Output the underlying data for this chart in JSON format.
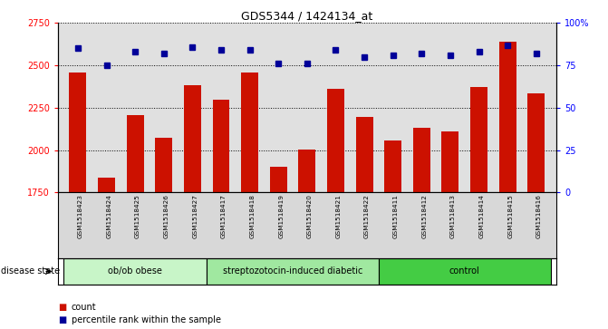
{
  "title": "GDS5344 / 1424134_at",
  "samples": [
    "GSM1518423",
    "GSM1518424",
    "GSM1518425",
    "GSM1518426",
    "GSM1518427",
    "GSM1518417",
    "GSM1518418",
    "GSM1518419",
    "GSM1518420",
    "GSM1518421",
    "GSM1518422",
    "GSM1518411",
    "GSM1518412",
    "GSM1518413",
    "GSM1518414",
    "GSM1518415",
    "GSM1518416"
  ],
  "counts": [
    2460,
    1840,
    2205,
    2075,
    2385,
    2300,
    2460,
    1900,
    2005,
    2360,
    2195,
    2055,
    2130,
    2110,
    2370,
    2640,
    2335
  ],
  "percentiles": [
    85,
    75,
    83,
    82,
    86,
    84,
    84,
    76,
    76,
    84,
    80,
    81,
    82,
    81,
    83,
    87,
    82
  ],
  "groups": [
    {
      "label": "ob/ob obese",
      "start": 0,
      "end": 5,
      "color": "#c8f5c8"
    },
    {
      "label": "streptozotocin-induced diabetic",
      "start": 5,
      "end": 11,
      "color": "#a0e8a0"
    },
    {
      "label": "control",
      "start": 11,
      "end": 17,
      "color": "#44cc44"
    }
  ],
  "ylim_left": [
    1750,
    2750
  ],
  "ylim_right": [
    0,
    100
  ],
  "yticks_left": [
    1750,
    2000,
    2250,
    2500,
    2750
  ],
  "yticks_right": [
    0,
    25,
    50,
    75,
    100
  ],
  "bar_color": "#cc1100",
  "dot_color": "#000099",
  "bar_bottom": 1750,
  "plot_bg_color": "#e0e0e0"
}
